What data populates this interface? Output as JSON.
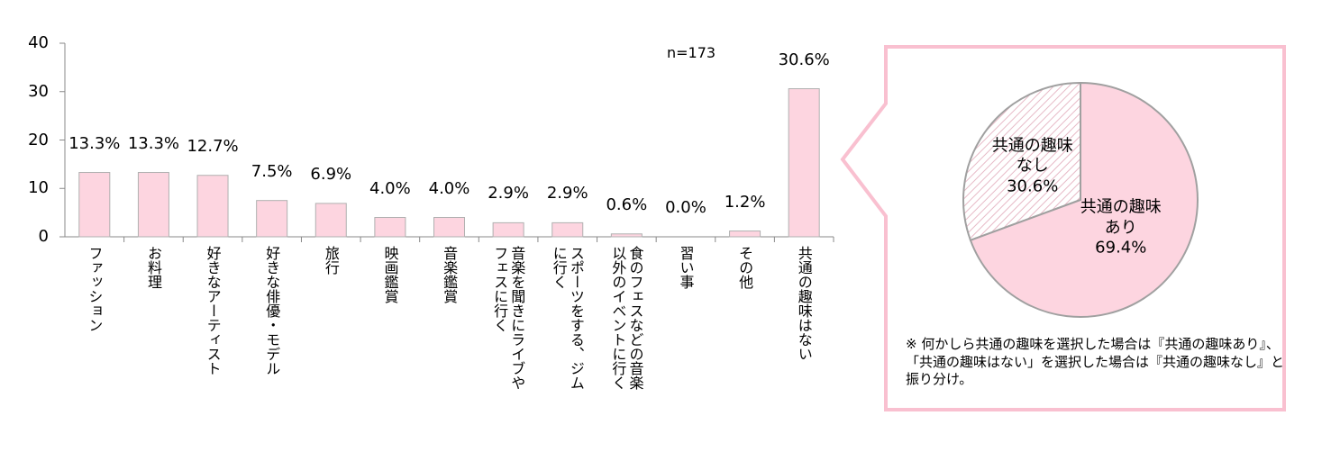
{
  "chart_data": [
    {
      "type": "bar",
      "categories": [
        "ファッション",
        "お料理",
        "好きなアーティスト",
        "好きな俳優・モデル",
        "旅行",
        "映画鑑賞",
        "音楽鑑賞",
        "音楽を聞きにライブや\nフェスに行く",
        "スポーツをする、ジム\nに行く",
        "食のフェスなどの音楽\n以外のイベントに行く",
        "習い事",
        "その他",
        "共通の趣味はない"
      ],
      "values": [
        13.3,
        13.3,
        12.7,
        7.5,
        6.9,
        4.0,
        4.0,
        2.9,
        2.9,
        0.6,
        0.0,
        1.2,
        30.6
      ],
      "value_labels": [
        "13.3%",
        "13.3%",
        "12.7%",
        "7.5%",
        "6.9%",
        "4.0%",
        "4.0%",
        "2.9%",
        "2.9%",
        "0.6%",
        "0.0%",
        "1.2%",
        "30.6%"
      ],
      "color": "#fdd5e0",
      "ylim": [
        0,
        40
      ],
      "yticks": [
        0,
        10,
        20,
        30,
        40
      ],
      "annotation": "n=173"
    },
    {
      "type": "pie",
      "series": [
        {
          "name": "共通の趣味\nなし",
          "color": "#fbe3ea",
          "pattern": "hatch",
          "values": [
            30.6
          ],
          "value_labels": [
            "30.6%"
          ]
        },
        {
          "name": "共通の趣味\nあり",
          "color": "#fdd5e0",
          "values": [
            69.4
          ],
          "value_labels": [
            "69.4%"
          ]
        }
      ],
      "note": "※ 何かしら共通の趣味を選択した場合は『共通の趣味あり』、「共通の趣味はない」を選択した場合は『共通の趣味なし』と振り分け。"
    }
  ]
}
